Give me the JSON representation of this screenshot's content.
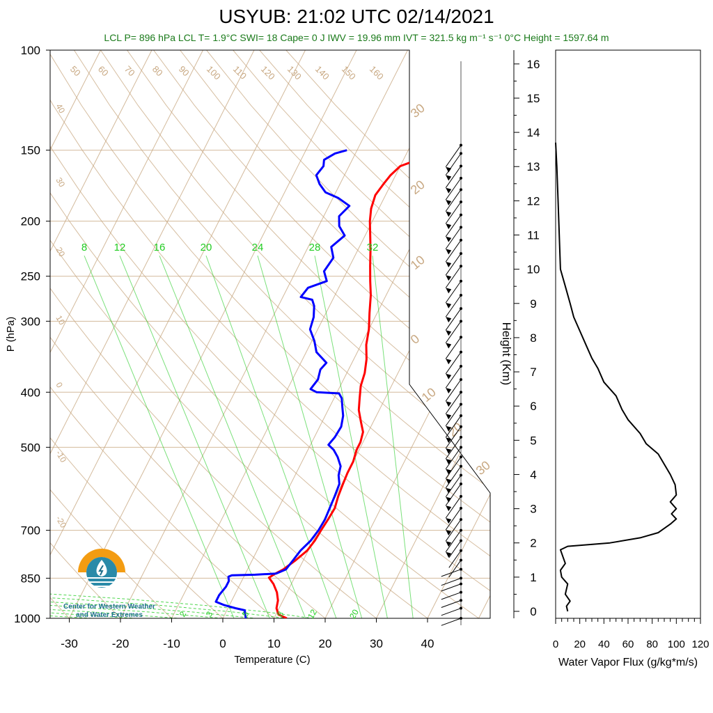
{
  "title": "USYUB: 21:02 UTC 02/14/2021",
  "subtitle": "LCL P= 896 hPa  LCL T= 1.9°C  SWI= 18  Cape= 0 J  IWV = 19.96 mm  IVT = 321.5 kg m⁻¹ s⁻¹  0°C Height = 1597.64 m",
  "logo": {
    "line1": "Center for Western Weather",
    "line2": "and Water Extremes",
    "colors": {
      "sun": "#f39c12",
      "water": "#2a8aa8",
      "drop": "#1f6f8b"
    }
  },
  "colors": {
    "temperature": "#ff0000",
    "dewpoint": "#0000ff",
    "isotherm": "#c8a882",
    "mixing_ratio": "#22cc22",
    "profile": "#000000"
  },
  "chart_data": [
    {
      "type": "line",
      "name": "skew-t",
      "xlabel": "Temperature (C)",
      "ylabel": "P (hPa)",
      "xlim": [
        -35,
        50
      ],
      "ylim": [
        1000,
        100
      ],
      "y_scale": "log",
      "x_ticks": [
        -30,
        -20,
        -10,
        0,
        10,
        20,
        30,
        40
      ],
      "y_ticks": [
        100,
        150,
        200,
        250,
        300,
        400,
        500,
        700,
        850,
        1000
      ],
      "isotherm_labels": [
        50,
        60,
        70,
        80,
        90,
        100,
        110,
        120,
        130,
        140,
        150,
        160,
        40,
        30,
        20,
        10,
        0,
        -10,
        -20,
        30,
        20,
        10,
        0,
        10,
        20,
        30
      ],
      "mixing_ratio_labels": [
        8,
        12,
        16,
        20,
        24,
        28,
        32
      ],
      "mixing_ratio_bottom_labels": [
        2,
        3,
        5,
        8,
        12,
        20
      ],
      "series": [
        {
          "name": "temperature",
          "points": [
            [
              12.5,
              1000
            ],
            [
              10.5,
              985
            ],
            [
              9.5,
              960
            ],
            [
              9.0,
              930
            ],
            [
              8.0,
              900
            ],
            [
              6.5,
              870
            ],
            [
              5.0,
              848
            ],
            [
              5.8,
              835
            ],
            [
              7.0,
              820
            ],
            [
              8.5,
              790
            ],
            [
              9.8,
              760
            ],
            [
              10.3,
              730
            ],
            [
              10.5,
              700
            ],
            [
              10.8,
              670
            ],
            [
              11.0,
              640
            ],
            [
              10.5,
              610
            ],
            [
              10.2,
              580
            ],
            [
              10.0,
              555
            ],
            [
              10.0,
              530
            ],
            [
              9.5,
              505
            ],
            [
              9.5,
              490
            ],
            [
              9.0,
              470
            ],
            [
              7.5,
              450
            ],
            [
              6.0,
              430
            ],
            [
              5.0,
              410
            ],
            [
              4.0,
              390
            ],
            [
              3.5,
              370
            ],
            [
              2.5,
              350
            ],
            [
              1.0,
              330
            ],
            [
              0.0,
              310
            ],
            [
              -1.5,
              290
            ],
            [
              -3.0,
              270
            ],
            [
              -4.5,
              255
            ],
            [
              -6.0,
              240
            ],
            [
              -7.5,
              225
            ],
            [
              -9.0,
              212
            ],
            [
              -10.5,
              200
            ],
            [
              -11.5,
              190
            ],
            [
              -12.0,
              180
            ],
            [
              -11.5,
              172
            ],
            [
              -11.0,
              166
            ],
            [
              -10.0,
              160
            ],
            [
              -8.0,
              157
            ],
            [
              -5.0,
              154
            ],
            [
              -2.0,
              151
            ],
            [
              0.0,
              149
            ]
          ]
        },
        {
          "name": "dewpoint",
          "points": [
            [
              4.5,
              1000
            ],
            [
              4.0,
              985
            ],
            [
              3.5,
              968
            ],
            [
              1.5,
              960
            ],
            [
              -1.0,
              948
            ],
            [
              -3.0,
              935
            ],
            [
              -3.0,
              910
            ],
            [
              -2.5,
              880
            ],
            [
              -2.5,
              860
            ],
            [
              -3.0,
              845
            ],
            [
              -2.5,
              840
            ],
            [
              2.0,
              838
            ],
            [
              6.0,
              834
            ],
            [
              7.5,
              820
            ],
            [
              8.0,
              790
            ],
            [
              8.5,
              760
            ],
            [
              9.5,
              730
            ],
            [
              10.0,
              700
            ],
            [
              10.2,
              670
            ],
            [
              10.0,
              640
            ],
            [
              9.8,
              610
            ],
            [
              9.5,
              580
            ],
            [
              8.5,
              560
            ],
            [
              8.0,
              540
            ],
            [
              6.5,
              520
            ],
            [
              5.0,
              505
            ],
            [
              3.5,
              495
            ],
            [
              4.0,
              480
            ],
            [
              4.2,
              460
            ],
            [
              3.5,
              440
            ],
            [
              2.5,
              425
            ],
            [
              1.5,
              410
            ],
            [
              0.5,
              402
            ],
            [
              -4.0,
              400
            ],
            [
              -5.5,
              395
            ],
            [
              -5.0,
              380
            ],
            [
              -5.5,
              365
            ],
            [
              -5.0,
              355
            ],
            [
              -8.0,
              340
            ],
            [
              -9.5,
              325
            ],
            [
              -11.5,
              310
            ],
            [
              -12.0,
              295
            ],
            [
              -13.0,
              282
            ],
            [
              -14.0,
              275
            ],
            [
              -16.5,
              272
            ],
            [
              -16.0,
              262
            ],
            [
              -13.0,
              255
            ],
            [
              -14.5,
              245
            ],
            [
              -14.0,
              232
            ],
            [
              -15.5,
              222
            ],
            [
              -14.0,
              212
            ],
            [
              -16.0,
              204
            ],
            [
              -17.0,
              196
            ],
            [
              -16.0,
              188
            ],
            [
              -19.0,
              182
            ],
            [
              -22.0,
              178
            ],
            [
              -24.0,
              172
            ],
            [
              -25.5,
              166
            ],
            [
              -25.0,
              160
            ],
            [
              -25.5,
              156
            ],
            [
              -24.0,
              152
            ],
            [
              -22.0,
              150
            ]
          ]
        }
      ]
    },
    {
      "type": "line",
      "name": "water-vapor-flux",
      "xlabel": "Water Vapor Flux (g/kg*m/s)",
      "ylabel": "Height (Km)",
      "xlim": [
        0,
        120
      ],
      "ylim": [
        0,
        16.5
      ],
      "x_ticks": [
        0,
        20,
        40,
        60,
        80,
        100,
        120
      ],
      "y_ticks": [
        0,
        1,
        2,
        3,
        4,
        5,
        6,
        7,
        8,
        9,
        10,
        11,
        12,
        13,
        14,
        15,
        16
      ],
      "series": [
        {
          "name": "flux",
          "points": [
            [
              10,
              0.0
            ],
            [
              9,
              0.15
            ],
            [
              12,
              0.3
            ],
            [
              8,
              0.5
            ],
            [
              10,
              0.8
            ],
            [
              5,
              1.0
            ],
            [
              4,
              1.2
            ],
            [
              8,
              1.4
            ],
            [
              6,
              1.6
            ],
            [
              4,
              1.8
            ],
            [
              10,
              1.9
            ],
            [
              45,
              2.0
            ],
            [
              70,
              2.15
            ],
            [
              85,
              2.3
            ],
            [
              95,
              2.55
            ],
            [
              100,
              2.7
            ],
            [
              96,
              2.85
            ],
            [
              100,
              3.0
            ],
            [
              95,
              3.2
            ],
            [
              100,
              3.4
            ],
            [
              99,
              3.7
            ],
            [
              95,
              4.0
            ],
            [
              90,
              4.3
            ],
            [
              85,
              4.6
            ],
            [
              75,
              4.9
            ],
            [
              70,
              5.2
            ],
            [
              60,
              5.6
            ],
            [
              55,
              5.9
            ],
            [
              50,
              6.3
            ],
            [
              40,
              6.7
            ],
            [
              35,
              7.1
            ],
            [
              30,
              7.4
            ],
            [
              25,
              7.8
            ],
            [
              20,
              8.2
            ],
            [
              15,
              8.6
            ],
            [
              12,
              9.0
            ],
            [
              8,
              9.5
            ],
            [
              4,
              10.0
            ],
            [
              3,
              11.0
            ],
            [
              2,
              12.0
            ],
            [
              1,
              13.0
            ],
            [
              0,
              13.7
            ]
          ]
        }
      ]
    },
    {
      "type": "scatter",
      "name": "wind-barbs",
      "ylabel": "P (hPa)",
      "levels": [
        1000,
        960,
        930,
        900,
        870,
        850,
        820,
        790,
        760,
        730,
        700,
        670,
        640,
        610,
        580,
        560,
        540,
        520,
        500,
        480,
        460,
        440,
        420,
        400,
        380,
        360,
        340,
        320,
        300,
        285,
        270,
        255,
        240,
        228,
        216,
        205,
        195,
        185,
        176,
        168,
        160,
        152,
        147
      ]
    }
  ]
}
